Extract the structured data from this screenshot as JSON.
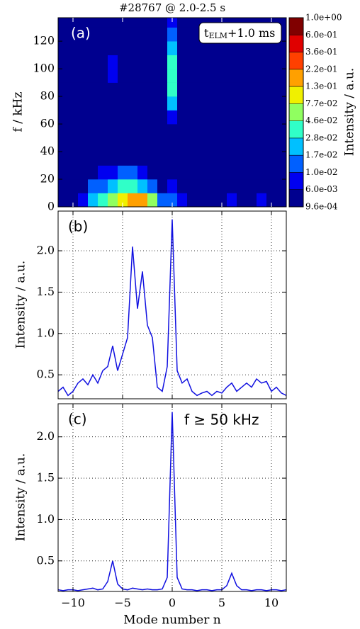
{
  "chart_data": [
    {
      "type": "heatmap",
      "title": "#28767 @ 2.0-2.5 s",
      "ylabel": "f / kHz",
      "panel_label": "(a)",
      "annotation": {
        "text": "t",
        "sub": "ELM",
        "rest": "+1.0 ms"
      },
      "xlim": [
        -11.5,
        11.5
      ],
      "ylim": [
        0,
        137
      ],
      "yticks": [
        0,
        20,
        40,
        60,
        80,
        100,
        120
      ],
      "x": [
        -11,
        -10,
        -9,
        -8,
        -7,
        -6,
        -5,
        -4,
        -3,
        -2,
        -1,
        0,
        1,
        2,
        3,
        4,
        5,
        6,
        7,
        8,
        9,
        10,
        11
      ],
      "y": [
        5,
        15,
        25,
        35,
        45,
        55,
        65,
        75,
        85,
        95,
        105,
        115,
        125,
        135
      ],
      "z": [
        [
          0.004,
          0.005,
          0.008,
          0.02,
          0.04,
          0.06,
          0.12,
          0.2,
          0.15,
          0.06,
          0.01,
          0.015,
          0.006,
          0.005,
          0.004,
          0.004,
          0.005,
          0.008,
          0.005,
          0.004,
          0.006,
          0.004,
          0.003
        ],
        [
          0.003,
          0.004,
          0.005,
          0.01,
          0.015,
          0.02,
          0.03,
          0.03,
          0.02,
          0.01,
          0.005,
          0.008,
          0.004,
          0.003,
          0.003,
          0.003,
          0.003,
          0.005,
          0.004,
          0.003,
          0.004,
          0.003,
          0.002
        ],
        [
          0.002,
          0.002,
          0.003,
          0.004,
          0.006,
          0.008,
          0.01,
          0.01,
          0.008,
          0.005,
          0.003,
          0.005,
          0.003,
          0.002,
          0.002,
          0.002,
          0.002,
          0.003,
          0.002,
          0.002,
          0.002,
          0.002,
          0.002
        ],
        [
          0.0015,
          0.0015,
          0.002,
          0.002,
          0.003,
          0.004,
          0.004,
          0.004,
          0.003,
          0.002,
          0.002,
          0.004,
          0.002,
          0.0015,
          0.0015,
          0.0015,
          0.0015,
          0.002,
          0.0015,
          0.0015,
          0.0015,
          0.0015,
          0.0015
        ],
        [
          0.0012,
          0.0012,
          0.0012,
          0.0012,
          0.0015,
          0.003,
          0.002,
          0.002,
          0.0015,
          0.0012,
          0.0012,
          0.004,
          0.0012,
          0.0012,
          0.0012,
          0.0012,
          0.0012,
          0.0015,
          0.0012,
          0.0012,
          0.0012,
          0.0012,
          0.0012
        ],
        [
          0.0012,
          0.0012,
          0.0012,
          0.0012,
          0.0012,
          0.002,
          0.0012,
          0.0012,
          0.0012,
          0.0012,
          0.0012,
          0.004,
          0.0012,
          0.0012,
          0.0012,
          0.0012,
          0.0012,
          0.0012,
          0.0012,
          0.0012,
          0.0012,
          0.0012,
          0.0012
        ],
        [
          0.0012,
          0.0012,
          0.0012,
          0.0012,
          0.0012,
          0.002,
          0.0012,
          0.0012,
          0.0012,
          0.0012,
          0.0012,
          0.007,
          0.0012,
          0.0012,
          0.0012,
          0.0012,
          0.0012,
          0.0015,
          0.0012,
          0.0012,
          0.0012,
          0.0012,
          0.0012
        ],
        [
          0.0012,
          0.0012,
          0.0012,
          0.0012,
          0.0012,
          0.004,
          0.0012,
          0.0012,
          0.0012,
          0.0012,
          0.0012,
          0.025,
          0.0012,
          0.0012,
          0.0012,
          0.0012,
          0.0012,
          0.003,
          0.0012,
          0.0012,
          0.0012,
          0.0012,
          0.0012
        ],
        [
          0.0012,
          0.0012,
          0.0012,
          0.0012,
          0.0012,
          0.005,
          0.0012,
          0.0012,
          0.0012,
          0.0012,
          0.0012,
          0.03,
          0.0012,
          0.0012,
          0.0012,
          0.0012,
          0.0012,
          0.004,
          0.0012,
          0.0012,
          0.0012,
          0.0012,
          0.0012
        ],
        [
          0.0012,
          0.0012,
          0.0012,
          0.0012,
          0.0012,
          0.006,
          0.0012,
          0.0012,
          0.0012,
          0.0012,
          0.0012,
          0.03,
          0.0012,
          0.0012,
          0.0012,
          0.0012,
          0.0012,
          0.004,
          0.0012,
          0.0012,
          0.0012,
          0.0012,
          0.0012
        ],
        [
          0.0012,
          0.0012,
          0.0012,
          0.0012,
          0.0012,
          0.006,
          0.0012,
          0.0012,
          0.0012,
          0.0012,
          0.0012,
          0.035,
          0.0012,
          0.0012,
          0.0012,
          0.0012,
          0.0012,
          0.003,
          0.0012,
          0.0012,
          0.0012,
          0.0012,
          0.0012
        ],
        [
          0.0012,
          0.0012,
          0.0012,
          0.0012,
          0.0012,
          0.005,
          0.0012,
          0.0012,
          0.0012,
          0.0012,
          0.0012,
          0.025,
          0.0012,
          0.0012,
          0.0012,
          0.0012,
          0.0012,
          0.002,
          0.0012,
          0.0012,
          0.0012,
          0.0012,
          0.0012
        ],
        [
          0.0012,
          0.0012,
          0.0012,
          0.0012,
          0.0012,
          0.003,
          0.0012,
          0.0012,
          0.0012,
          0.0012,
          0.0012,
          0.012,
          0.0012,
          0.0012,
          0.0012,
          0.0012,
          0.0012,
          0.0015,
          0.0012,
          0.0012,
          0.0012,
          0.0012,
          0.0012
        ],
        [
          0.0012,
          0.0012,
          0.0012,
          0.0012,
          0.0012,
          0.0015,
          0.0012,
          0.0012,
          0.0012,
          0.0012,
          0.0012,
          0.007,
          0.0012,
          0.0012,
          0.0012,
          0.0012,
          0.0012,
          0.0012,
          0.0012,
          0.0012,
          0.0012,
          0.0012,
          0.0012
        ]
      ],
      "colorbar": {
        "label": "Intensity / a.u.",
        "log": true,
        "ticks": [
          {
            "value": 0.00096,
            "label": "9.6e-04"
          },
          {
            "value": 0.006,
            "label": "6.0e-03"
          },
          {
            "value": 0.01,
            "label": "1.0e-02"
          },
          {
            "value": 0.017,
            "label": "1.7e-02"
          },
          {
            "value": 0.028,
            "label": "2.8e-02"
          },
          {
            "value": 0.046,
            "label": "4.6e-02"
          },
          {
            "value": 0.077,
            "label": "7.7e-02"
          },
          {
            "value": 0.13,
            "label": "1.3e-01"
          },
          {
            "value": 0.22,
            "label": "2.2e-01"
          },
          {
            "value": 0.36,
            "label": "3.6e-01"
          },
          {
            "value": 0.6,
            "label": "6.0e-01"
          },
          {
            "value": 1,
            "label": "1.0e+00"
          }
        ],
        "colors": [
          "#00008f",
          "#0000f0",
          "#0060ff",
          "#00c0ff",
          "#30ffc8",
          "#90ff60",
          "#f0f000",
          "#ffa000",
          "#ff4000",
          "#e00000",
          "#800000"
        ]
      }
    },
    {
      "type": "line",
      "ylabel": "Intensity / a.u.",
      "panel_label": "(b)",
      "color": "#1010e0",
      "grid": true,
      "xlim": [
        -11.5,
        11.5
      ],
      "ylim": [
        0.21,
        2.48
      ],
      "yticks": [
        0.5,
        {
          "value": 1,
          "label": "1.0"
        },
        1.5,
        {
          "value": 2,
          "label": "2.0"
        }
      ],
      "x": [
        -11.5,
        -11,
        -10.5,
        -10,
        -9.5,
        -9,
        -8.5,
        -8,
        -7.5,
        -7,
        -6.5,
        -6,
        -5.5,
        -5,
        -4.5,
        -4,
        -3.5,
        -3,
        -2.5,
        -2,
        -1.5,
        -1,
        -0.5,
        0,
        0.5,
        1,
        1.5,
        2,
        2.5,
        3,
        3.5,
        4,
        4.5,
        5,
        5.5,
        6,
        6.5,
        7,
        7.5,
        8,
        8.5,
        9,
        9.5,
        10,
        10.5,
        11,
        11.5
      ],
      "values": [
        0.3,
        0.35,
        0.25,
        0.3,
        0.4,
        0.45,
        0.38,
        0.5,
        0.4,
        0.55,
        0.6,
        0.85,
        0.55,
        0.75,
        0.95,
        2.05,
        1.3,
        1.75,
        1.1,
        0.95,
        0.35,
        0.3,
        0.6,
        2.38,
        0.55,
        0.4,
        0.45,
        0.3,
        0.25,
        0.28,
        0.3,
        0.25,
        0.3,
        0.28,
        0.35,
        0.4,
        0.3,
        0.35,
        0.4,
        0.35,
        0.45,
        0.4,
        0.42,
        0.3,
        0.35,
        0.28,
        0.25
      ]
    },
    {
      "type": "line",
      "ylabel": "Intensity / a.u.",
      "xlabel": "Mode number n",
      "panel_label": "(c)",
      "annotation_text": "f ≥ 50 kHz",
      "color": "#1010e0",
      "grid": true,
      "xlim": [
        -11.5,
        11.5
      ],
      "ylim": [
        0.13,
        2.4
      ],
      "xticks": [
        {
          "value": -10,
          "label": "−10"
        },
        {
          "value": -5,
          "label": "−5"
        },
        0,
        5,
        10
      ],
      "yticks": [
        0.5,
        {
          "value": 1,
          "label": "1.0"
        },
        1.5,
        {
          "value": 2,
          "label": "2.0"
        }
      ],
      "x": [
        -11.5,
        -11,
        -10.5,
        -10,
        -9.5,
        -9,
        -8.5,
        -8,
        -7.5,
        -7,
        -6.5,
        -6,
        -5.5,
        -5,
        -4.5,
        -4,
        -3.5,
        -3,
        -2.5,
        -2,
        -1.5,
        -1,
        -0.5,
        0,
        0.5,
        1,
        1.5,
        2,
        2.5,
        3,
        3.5,
        4,
        4.5,
        5,
        5.5,
        6,
        6.5,
        7,
        7.5,
        8,
        8.5,
        9,
        9.5,
        10,
        10.5,
        11,
        11.5
      ],
      "values": [
        0.15,
        0.14,
        0.15,
        0.15,
        0.14,
        0.15,
        0.16,
        0.17,
        0.15,
        0.16,
        0.25,
        0.5,
        0.22,
        0.16,
        0.15,
        0.17,
        0.16,
        0.15,
        0.16,
        0.15,
        0.15,
        0.16,
        0.3,
        2.3,
        0.3,
        0.16,
        0.15,
        0.15,
        0.14,
        0.15,
        0.15,
        0.14,
        0.15,
        0.15,
        0.2,
        0.35,
        0.2,
        0.15,
        0.15,
        0.14,
        0.15,
        0.15,
        0.14,
        0.15,
        0.15,
        0.14,
        0.15
      ]
    }
  ]
}
